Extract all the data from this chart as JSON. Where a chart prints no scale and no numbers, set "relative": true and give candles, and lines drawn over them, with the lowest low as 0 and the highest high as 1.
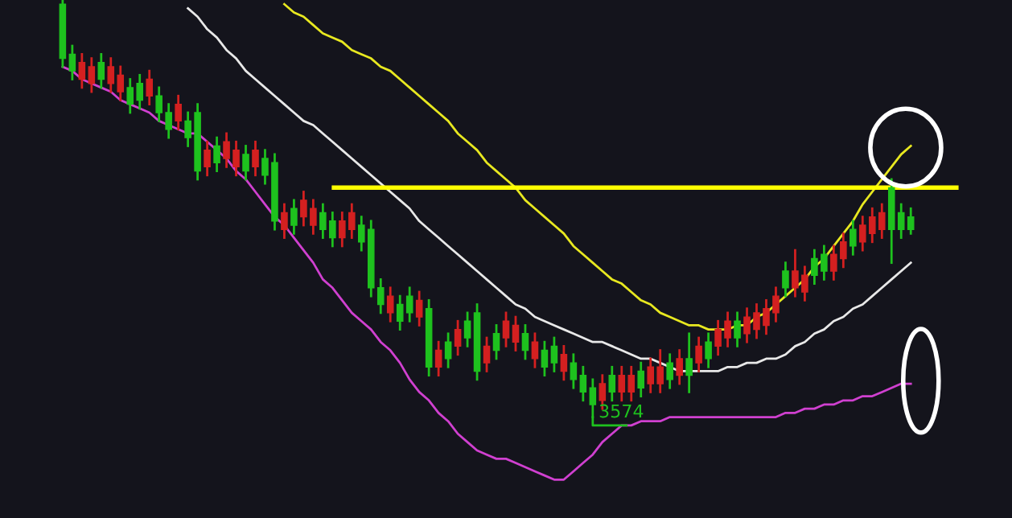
{
  "chart_data": {
    "type": "candlestick",
    "relative": true,
    "categories": [
      null,
      null,
      null,
      null,
      null,
      null,
      null,
      null,
      null,
      null,
      null,
      null,
      null,
      null,
      null,
      null,
      null,
      null,
      null,
      null,
      null,
      null,
      null,
      null,
      null,
      null,
      null,
      null,
      null,
      null,
      null,
      null,
      null,
      null,
      null,
      null,
      null,
      null,
      null,
      null,
      null,
      null,
      null,
      null,
      null,
      null,
      null,
      null,
      null,
      null,
      null,
      null,
      null,
      null,
      null,
      null,
      null,
      null,
      null,
      null,
      null,
      null,
      null,
      null,
      null,
      null,
      null,
      null,
      null,
      null,
      null,
      null,
      null,
      null,
      null,
      null,
      null,
      null,
      null,
      null,
      null,
      null,
      null,
      null,
      null,
      null,
      null,
      null,
      null
    ],
    "ohlc": [
      [
        0.99,
        1,
        0.84,
        0.86
      ],
      [
        0.87,
        0.89,
        0.81,
        0.83
      ],
      [
        0.81,
        0.87,
        0.79,
        0.85
      ],
      [
        0.8,
        0.86,
        0.78,
        0.84
      ],
      [
        0.85,
        0.87,
        0.79,
        0.81
      ],
      [
        0.8,
        0.86,
        0.78,
        0.84
      ],
      [
        0.78,
        0.84,
        0.76,
        0.82
      ],
      [
        0.79,
        0.81,
        0.73,
        0.75
      ],
      [
        0.8,
        0.82,
        0.74,
        0.76
      ],
      [
        0.77,
        0.83,
        0.75,
        0.81
      ],
      [
        0.77,
        0.79,
        0.71,
        0.73
      ],
      [
        0.73,
        0.75,
        0.67,
        0.69
      ],
      [
        0.71,
        0.77,
        0.69,
        0.75
      ],
      [
        0.71,
        0.73,
        0.65,
        0.67
      ],
      [
        0.73,
        0.75,
        0.57,
        0.59
      ],
      [
        0.6,
        0.66,
        0.58,
        0.64
      ],
      [
        0.65,
        0.67,
        0.59,
        0.61
      ],
      [
        0.62,
        0.68,
        0.6,
        0.66
      ],
      [
        0.6,
        0.66,
        0.58,
        0.64
      ],
      [
        0.63,
        0.65,
        0.57,
        0.59
      ],
      [
        0.6,
        0.66,
        0.58,
        0.64
      ],
      [
        0.62,
        0.64,
        0.56,
        0.58
      ],
      [
        0.61,
        0.63,
        0.45,
        0.47
      ],
      [
        0.45,
        0.51,
        0.43,
        0.49
      ],
      [
        0.5,
        0.52,
        0.44,
        0.46
      ],
      [
        0.48,
        0.54,
        0.46,
        0.52
      ],
      [
        0.46,
        0.52,
        0.44,
        0.5
      ],
      [
        0.49,
        0.51,
        0.43,
        0.45
      ],
      [
        0.47,
        0.49,
        0.41,
        0.43
      ],
      [
        0.43,
        0.49,
        0.41,
        0.47
      ],
      [
        0.45,
        0.51,
        0.43,
        0.49
      ],
      [
        0.46,
        0.48,
        0.4,
        0.42
      ],
      [
        0.45,
        0.47,
        0.29,
        0.31
      ],
      [
        0.31,
        0.33,
        0.25,
        0.27
      ],
      [
        0.25,
        0.31,
        0.23,
        0.29
      ],
      [
        0.27,
        0.29,
        0.21,
        0.23
      ],
      [
        0.29,
        0.31,
        0.23,
        0.25
      ],
      [
        0.24,
        0.3,
        0.22,
        0.28
      ],
      [
        0.26,
        0.28,
        0.1,
        0.12
      ],
      [
        0.12,
        0.18,
        0.1,
        0.16
      ],
      [
        0.18,
        0.2,
        0.12,
        0.14
      ],
      [
        0.17,
        0.23,
        0.15,
        0.21
      ],
      [
        0.23,
        0.25,
        0.17,
        0.19
      ],
      [
        0.25,
        0.27,
        0.09,
        0.11
      ],
      [
        0.13,
        0.19,
        0.11,
        0.17
      ],
      [
        0.2,
        0.22,
        0.14,
        0.16
      ],
      [
        0.19,
        0.25,
        0.17,
        0.23
      ],
      [
        0.18,
        0.24,
        0.16,
        0.22
      ],
      [
        0.2,
        0.22,
        0.14,
        0.16
      ],
      [
        0.14,
        0.2,
        0.12,
        0.18
      ],
      [
        0.16,
        0.18,
        0.1,
        0.12
      ],
      [
        0.17,
        0.19,
        0.11,
        0.13
      ],
      [
        0.11,
        0.17,
        0.09,
        0.15
      ],
      [
        0.13,
        0.15,
        0.07,
        0.09
      ],
      [
        0.1,
        0.12,
        0.04,
        0.06
      ],
      [
        0.07,
        0.09,
        0,
        0.03
      ],
      [
        0.04,
        0.1,
        0.02,
        0.08
      ],
      [
        0.1,
        0.12,
        0.04,
        0.06
      ],
      [
        0.06,
        0.12,
        0.04,
        0.1
      ],
      [
        0.06,
        0.12,
        0.04,
        0.1
      ],
      [
        0.11,
        0.13,
        0.05,
        0.07
      ],
      [
        0.08,
        0.14,
        0.06,
        0.12
      ],
      [
        0.08,
        0.16,
        0.06,
        0.12
      ],
      [
        0.13,
        0.15,
        0.07,
        0.09
      ],
      [
        0.1,
        0.16,
        0.08,
        0.14
      ],
      [
        0.14,
        0.2,
        0.06,
        0.1
      ],
      [
        0.13,
        0.19,
        0.11,
        0.17
      ],
      [
        0.18,
        0.2,
        0.12,
        0.14
      ],
      [
        0.17,
        0.23,
        0.15,
        0.21
      ],
      [
        0.19,
        0.25,
        0.17,
        0.23
      ],
      [
        0.23,
        0.25,
        0.17,
        0.19
      ],
      [
        0.2,
        0.26,
        0.18,
        0.24
      ],
      [
        0.21,
        0.27,
        0.19,
        0.25
      ],
      [
        0.22,
        0.28,
        0.2,
        0.26
      ],
      [
        0.25,
        0.31,
        0.23,
        0.29
      ],
      [
        0.35,
        0.37,
        0.29,
        0.31
      ],
      [
        0.31,
        0.4,
        0.29,
        0.35
      ],
      [
        0.3,
        0.36,
        0.28,
        0.34
      ],
      [
        0.38,
        0.4,
        0.32,
        0.34
      ],
      [
        0.39,
        0.41,
        0.33,
        0.35
      ],
      [
        0.35,
        0.41,
        0.33,
        0.39
      ],
      [
        0.38,
        0.44,
        0.36,
        0.42
      ],
      [
        0.45,
        0.47,
        0.39,
        0.41
      ],
      [
        0.42,
        0.48,
        0.4,
        0.46
      ],
      [
        0.44,
        0.5,
        0.42,
        0.48
      ],
      [
        0.45,
        0.51,
        0.43,
        0.49
      ],
      [
        0.55,
        0.57,
        0.37,
        0.45
      ],
      [
        0.49,
        0.51,
        0.43,
        0.45
      ],
      [
        0.48,
        0.5,
        0.44,
        0.45
      ]
    ],
    "colors": [
      "#1ec21e",
      "#1ec21e",
      "#d42020",
      "#d42020",
      "#1ec21e",
      "#d42020",
      "#d42020",
      "#1ec21e",
      "#1ec21e",
      "#d42020",
      "#1ec21e",
      "#1ec21e",
      "#d42020",
      "#1ec21e",
      "#1ec21e",
      "#d42020",
      "#1ec21e",
      "#d42020",
      "#d42020",
      "#1ec21e",
      "#d42020",
      "#1ec21e",
      "#1ec21e",
      "#d42020",
      "#1ec21e",
      "#d42020",
      "#d42020",
      "#1ec21e",
      "#1ec21e",
      "#d42020",
      "#d42020",
      "#1ec21e",
      "#1ec21e",
      "#1ec21e",
      "#d42020",
      "#1ec21e",
      "#1ec21e",
      "#d42020",
      "#1ec21e",
      "#d42020",
      "#1ec21e",
      "#d42020",
      "#1ec21e",
      "#1ec21e",
      "#d42020",
      "#1ec21e",
      "#d42020",
      "#d42020",
      "#1ec21e",
      "#d42020",
      "#1ec21e",
      "#1ec21e",
      "#d42020",
      "#1ec21e",
      "#1ec21e",
      "#1ec21e",
      "#d42020",
      "#1ec21e",
      "#d42020",
      "#d42020",
      "#1ec21e",
      "#d42020",
      "#d42020",
      "#1ec21e",
      "#d42020",
      "#1ec21e",
      "#d42020",
      "#1ec21e",
      "#d42020",
      "#d42020",
      "#1ec21e",
      "#d42020",
      "#d42020",
      "#d42020",
      "#d42020",
      "#1ec21e",
      "#d42020",
      "#d42020",
      "#1ec21e",
      "#1ec21e",
      "#d42020",
      "#d42020",
      "#1ec21e",
      "#d42020",
      "#d42020",
      "#d42020",
      "#1ec21e",
      "#1ec21e",
      "#1ec21e"
    ],
    "series": [
      {
        "type": "line",
        "color": "#e8e8e8",
        "values": [
          null,
          null,
          null,
          null,
          null,
          null,
          null,
          null,
          null,
          null,
          null,
          null,
          null,
          0.98,
          0.96,
          0.93,
          0.91,
          0.88,
          0.86,
          0.83,
          0.81,
          0.79,
          0.77,
          0.75,
          0.73,
          0.71,
          0.7,
          0.68,
          0.66,
          0.64,
          0.62,
          0.6,
          0.58,
          0.56,
          0.54,
          0.52,
          0.5,
          0.47,
          0.45,
          0.43,
          0.41,
          0.39,
          0.37,
          0.35,
          0.33,
          0.31,
          0.29,
          0.27,
          0.26,
          0.24,
          0.23,
          0.22,
          0.21,
          0.2,
          0.19,
          0.18,
          0.18,
          0.17,
          0.16,
          0.15,
          0.14,
          0.14,
          0.13,
          0.12,
          0.11,
          0.11,
          0.11,
          0.11,
          0.11,
          0.12,
          0.12,
          0.13,
          0.13,
          0.14,
          0.14,
          0.15,
          0.17,
          0.18,
          0.2,
          0.21,
          0.23,
          0.24,
          0.26,
          0.27,
          0.29,
          0.31,
          0.33,
          0.35,
          0.37
        ]
      },
      {
        "type": "line",
        "color": "#e8e820",
        "values": [
          null,
          null,
          null,
          null,
          null,
          null,
          null,
          null,
          null,
          null,
          null,
          null,
          null,
          null,
          null,
          null,
          null,
          null,
          null,
          null,
          null,
          null,
          null,
          0.99,
          0.97,
          0.96,
          0.94,
          0.92,
          0.91,
          0.9,
          0.88,
          0.87,
          0.86,
          0.84,
          0.83,
          0.81,
          0.79,
          0.77,
          0.75,
          0.73,
          0.71,
          0.68,
          0.66,
          0.64,
          0.61,
          0.59,
          0.57,
          0.55,
          0.52,
          0.5,
          0.48,
          0.46,
          0.44,
          0.41,
          0.39,
          0.37,
          0.35,
          0.33,
          0.32,
          0.3,
          0.28,
          0.27,
          0.25,
          0.24,
          0.23,
          0.22,
          0.22,
          0.21,
          0.21,
          0.21,
          0.22,
          0.22,
          0.24,
          0.25,
          0.27,
          0.29,
          0.31,
          0.33,
          0.36,
          0.38,
          0.41,
          0.44,
          0.47,
          0.51,
          0.54,
          0.57,
          0.6,
          0.63,
          0.65
        ]
      },
      {
        "type": "line",
        "color": "#d040d0",
        "values": [
          0.84,
          0.83,
          0.81,
          0.8,
          0.79,
          0.78,
          0.76,
          0.75,
          0.74,
          0.73,
          0.71,
          0.7,
          0.69,
          0.68,
          0.68,
          0.66,
          0.64,
          0.62,
          0.59,
          0.57,
          0.54,
          0.51,
          0.48,
          0.46,
          0.43,
          0.4,
          0.37,
          0.33,
          0.31,
          0.28,
          0.25,
          0.23,
          0.21,
          0.18,
          0.16,
          0.13,
          0.09,
          0.06,
          0.04,
          0.01,
          -0.01,
          -0.04,
          -0.06,
          -0.08,
          -0.09,
          -0.1,
          -0.1,
          -0.11,
          -0.12,
          -0.13,
          -0.14,
          -0.15,
          -0.15,
          -0.13,
          -0.11,
          -0.09,
          -0.06,
          -0.04,
          -0.02,
          -0.02,
          -0.01,
          -0.01,
          -0.01,
          0,
          0,
          0,
          0,
          0,
          0,
          0,
          0,
          0,
          0,
          0,
          0,
          0.01,
          0.01,
          0.02,
          0.02,
          0.03,
          0.03,
          0.04,
          0.04,
          0.05,
          0.05,
          0.06,
          0.07,
          0.08,
          0.08
        ]
      }
    ],
    "ref_lines": [
      {
        "axis": "y",
        "value": 0.55,
        "color": "#ffff00"
      }
    ],
    "annotations": [
      {
        "text": "3574",
        "y": 0
      }
    ]
  }
}
